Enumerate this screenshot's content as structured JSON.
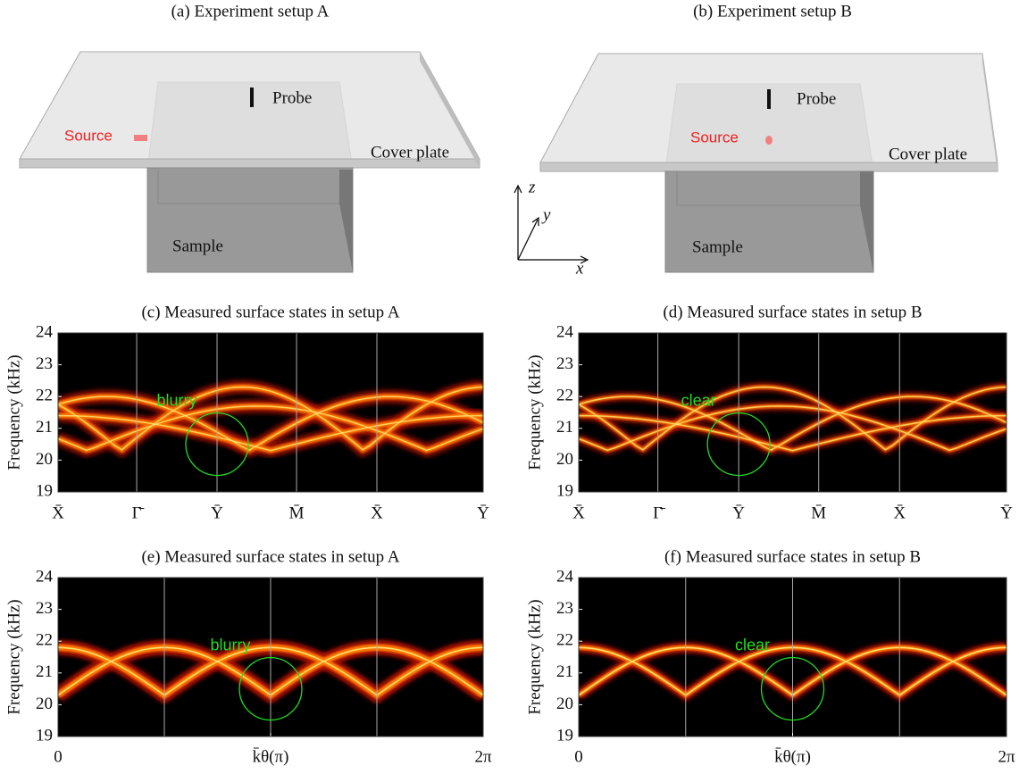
{
  "setups": [
    {
      "title": "(a) Experiment setup A",
      "probe": "Probe",
      "source": "Source",
      "cover": "Cover plate",
      "sample": "Sample"
    },
    {
      "title": "(b) Experiment setup B",
      "probe": "Probe",
      "source": "Source",
      "cover": "Cover plate",
      "sample": "Sample"
    }
  ],
  "triad": {
    "z": "z",
    "y": "y",
    "x": "x"
  },
  "chart_data": [
    {
      "type": "heatmap",
      "title": "(c) Measured surface states in setup A",
      "ylabel": "Frequency (kHz)",
      "ylim": [
        19,
        24
      ],
      "yticks": [
        19,
        20,
        21,
        22,
        23,
        24
      ],
      "categories": [
        "X̄",
        "Γ̄",
        "Ȳ",
        "M̄",
        "X̄",
        "Ȳ"
      ],
      "annotation": "blurry",
      "annotation_color": "#22dd22"
    },
    {
      "type": "heatmap",
      "title": "(d) Measured surface states in setup B",
      "ylabel": "Frequency (kHz)",
      "ylim": [
        19,
        24
      ],
      "yticks": [
        19,
        20,
        21,
        22,
        23,
        24
      ],
      "categories": [
        "X̄",
        "Γ̄",
        "Ȳ",
        "M̄",
        "X̄",
        "Ȳ"
      ],
      "annotation": "clear",
      "annotation_color": "#22dd22"
    },
    {
      "type": "heatmap",
      "title": "(e) Measured surface states in setup A",
      "ylabel": "Frequency (kHz)",
      "ylim": [
        19,
        24
      ],
      "yticks": [
        19,
        20,
        21,
        22,
        23,
        24
      ],
      "xlim": [
        0,
        2
      ],
      "xticks": [
        0,
        {
          "value": 1,
          "label": "k̄θ(π)"
        },
        {
          "value": 2,
          "label": "2π"
        }
      ],
      "xgrid": [
        0.5,
        1,
        1.5
      ],
      "annotation": "blurry",
      "annotation_color": "#22dd22"
    },
    {
      "type": "heatmap",
      "title": "(f) Measured surface states in setup B",
      "ylabel": "Frequency (kHz)",
      "ylim": [
        19,
        24
      ],
      "yticks": [
        19,
        20,
        21,
        22,
        23,
        24
      ],
      "xlim": [
        0,
        2
      ],
      "xticks": [
        0,
        {
          "value": 1,
          "label": "k̄θ(π)"
        },
        {
          "value": 2,
          "label": "2π"
        }
      ],
      "xgrid": [
        0.5,
        1,
        1.5
      ],
      "annotation": "clear",
      "annotation_color": "#22dd22"
    }
  ]
}
